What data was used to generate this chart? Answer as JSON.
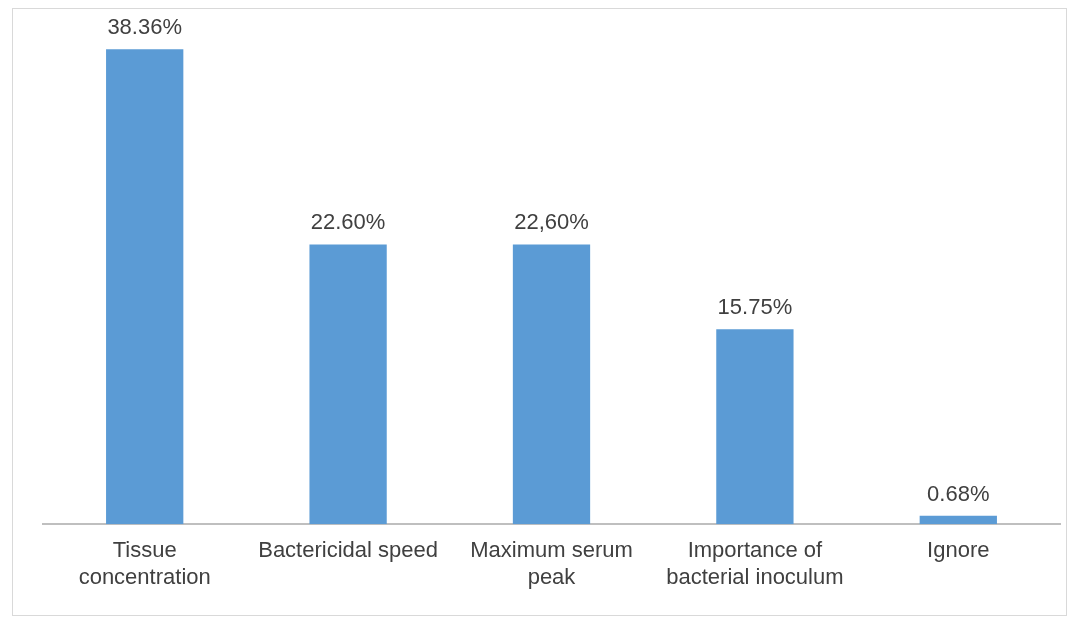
{
  "chart_data": {
    "type": "bar",
    "categories": [
      "Tissue concentration",
      "Bactericidal speed",
      "Maximum serum peak",
      "Importance of bacterial inoculum",
      "Ignore"
    ],
    "values": [
      38.36,
      22.6,
      22.6,
      15.75,
      0.68
    ],
    "value_labels": [
      "38.36%",
      "22.60%",
      "22,60%",
      "15.75%",
      "0.68%"
    ],
    "color": "#5b9bd5",
    "grid": false,
    "legend": false
  }
}
